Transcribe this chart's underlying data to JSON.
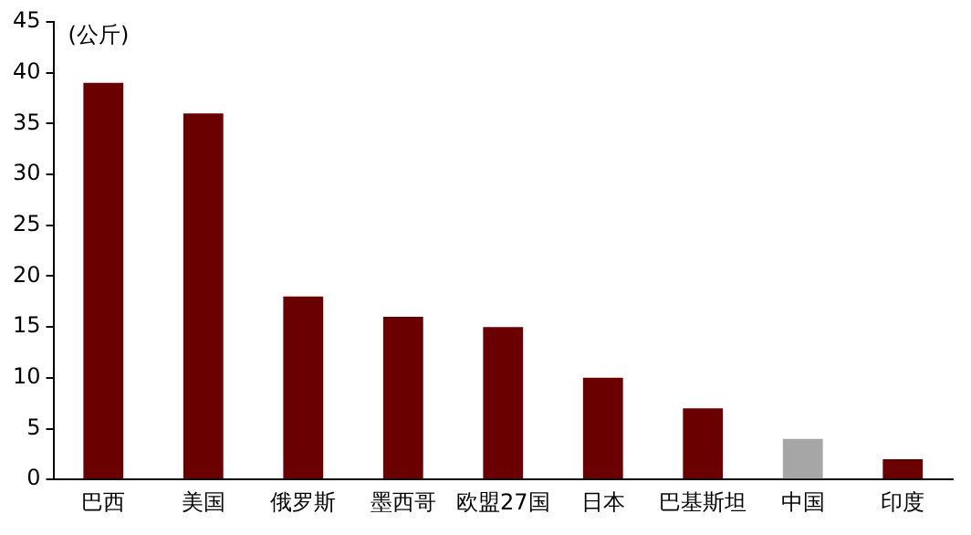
{
  "chart_data": {
    "type": "bar",
    "ylabel": "(公斤)",
    "categories": [
      "巴西",
      "美国",
      "俄罗斯",
      "墨西哥",
      "欧盟27国",
      "日本",
      "巴基斯坦",
      "中国",
      "印度"
    ],
    "values": [
      39,
      36,
      18,
      16,
      15,
      10,
      7,
      4,
      2
    ],
    "colors": [
      "#6b0000",
      "#6b0000",
      "#6b0000",
      "#6b0000",
      "#6b0000",
      "#6b0000",
      "#6b0000",
      "#a6a6a6",
      "#6b0000"
    ],
    "ylim": [
      0,
      45
    ],
    "yticks": [
      0,
      5,
      10,
      15,
      20,
      25,
      30,
      35,
      40,
      45
    ],
    "grid": false,
    "legend": false
  }
}
